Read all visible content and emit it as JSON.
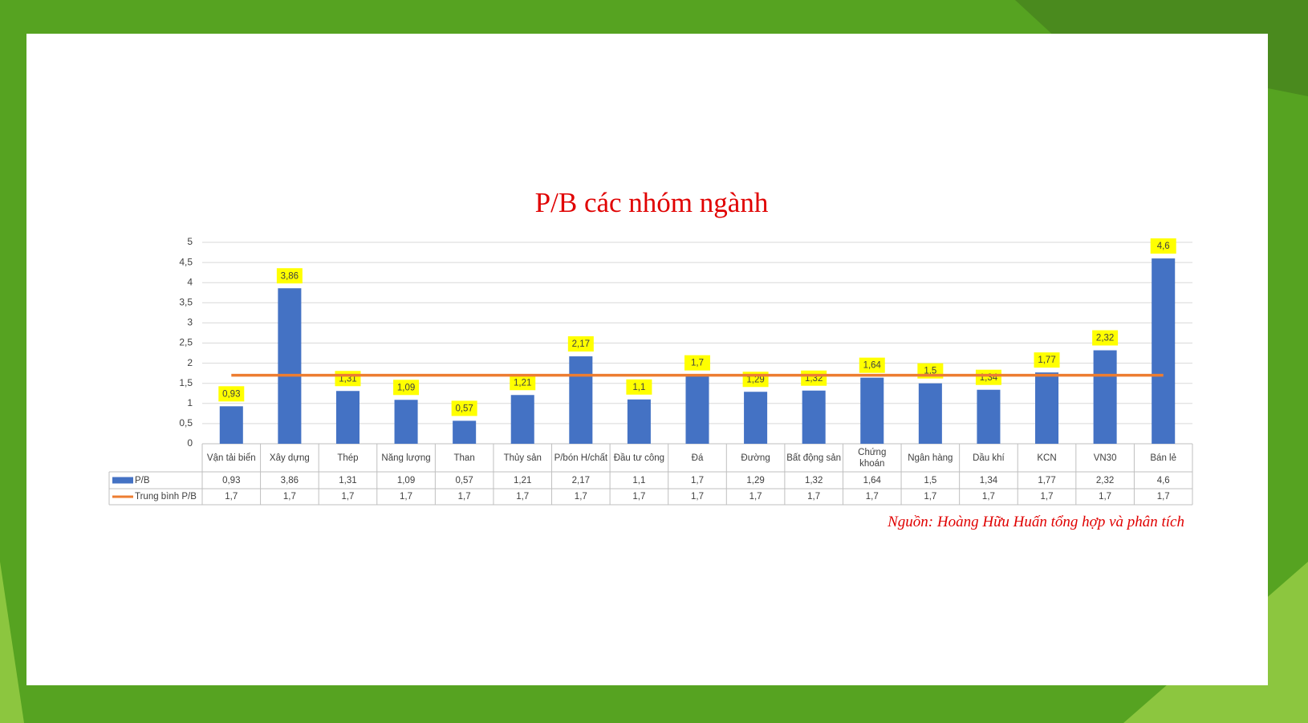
{
  "chart_data": {
    "type": "bar-line-table",
    "title": "P/B các nhóm ngành",
    "source": "Nguồn: Hoàng Hữu Huấn tổng hợp và phân tích",
    "categories": [
      "Vận tải biển",
      "Xây dựng",
      "Thép",
      "Năng lượng",
      "Than",
      "Thủy sản",
      "P/bón H/chất",
      "Đầu tư công",
      "Đá",
      "Đường",
      "Bất động sản",
      "Chứng khoán",
      "Ngân hàng",
      "Dầu khí",
      "KCN",
      "VN30",
      "Bán lẻ"
    ],
    "series": [
      {
        "name": "P/B",
        "type": "bar",
        "color": "#4472c4",
        "values": [
          0.93,
          3.86,
          1.31,
          1.09,
          0.57,
          1.21,
          2.17,
          1.1,
          1.7,
          1.29,
          1.32,
          1.64,
          1.5,
          1.34,
          1.77,
          2.32,
          4.6
        ],
        "value_labels": [
          "0,93",
          "3,86",
          "1,31",
          "1,09",
          "0,57",
          "1,21",
          "2,17",
          "1,1",
          "1,7",
          "1,29",
          "1,32",
          "1,64",
          "1,5",
          "1,34",
          "1,77",
          "2,32",
          "4,6"
        ]
      },
      {
        "name": "Trung bình P/B",
        "type": "line",
        "color": "#ed7d31",
        "values": [
          1.7,
          1.7,
          1.7,
          1.7,
          1.7,
          1.7,
          1.7,
          1.7,
          1.7,
          1.7,
          1.7,
          1.7,
          1.7,
          1.7,
          1.7,
          1.7,
          1.7
        ],
        "value_labels": [
          "1,7",
          "1,7",
          "1,7",
          "1,7",
          "1,7",
          "1,7",
          "1,7",
          "1,7",
          "1,7",
          "1,7",
          "1,7",
          "1,7",
          "1,7",
          "1,7",
          "1,7",
          "1,7",
          "1,7"
        ]
      }
    ],
    "ylim": [
      0,
      5
    ],
    "yticks": [
      0,
      {
        "value": 0.5,
        "label": "0,5"
      },
      1,
      {
        "value": 1.5,
        "label": "1,5"
      },
      2,
      {
        "value": 2.5,
        "label": "2,5"
      },
      3,
      {
        "value": 3.5,
        "label": "3,5"
      },
      4,
      {
        "value": 4.5,
        "label": "4,5"
      },
      5
    ],
    "grid": true
  }
}
